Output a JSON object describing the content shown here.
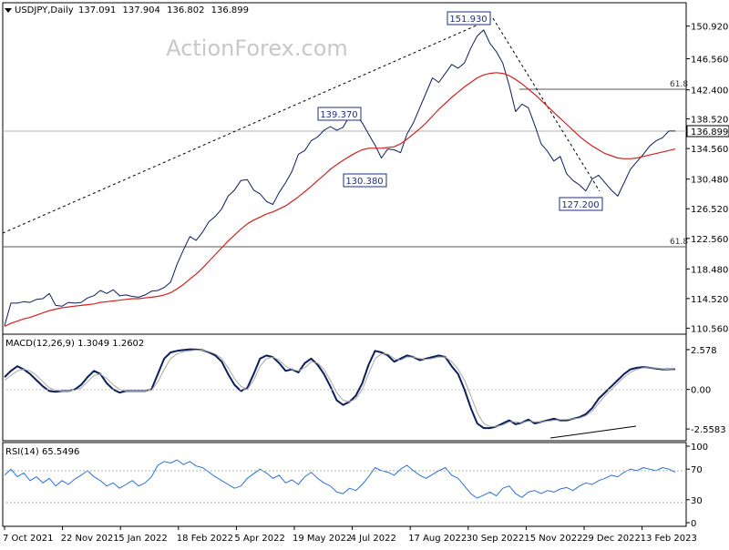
{
  "chart_data": [
    {
      "type": "line",
      "panel": "price",
      "symbol_header": "USDJPY,Daily",
      "ohlc": {
        "open": "137.091",
        "high": "137.904",
        "low": "136.802",
        "close": "136.899"
      },
      "watermark": "ActionForex.com",
      "x_ticks": [
        "7 Oct 2021",
        "22 Nov 2021",
        "5 Jan 2022",
        "18 Feb 2022",
        "5 Apr 2022",
        "19 May 2022",
        "4 Jul 2022",
        "17 Aug 2022",
        "30 Sep 2022",
        "15 Nov 2022",
        "29 Dec 2022",
        "13 Feb 2023"
      ],
      "y_ticks": [
        "150.920",
        "146.560",
        "142.400",
        "138.520",
        "134.560",
        "130.480",
        "126.520",
        "122.560",
        "118.480",
        "114.520",
        "110.560"
      ],
      "ylim": [
        110.0,
        153.8
      ],
      "current_price_label": "136.899",
      "series": [
        {
          "name": "Close",
          "color": "#0b1f5c",
          "values": [
            110.9,
            113.9,
            113.9,
            114.1,
            114.0,
            114.4,
            114.5,
            115.2,
            113.6,
            113.5,
            114.0,
            113.9,
            114.0,
            114.6,
            114.9,
            115.6,
            115.2,
            115.7,
            114.9,
            115.0,
            114.8,
            114.7,
            115.0,
            115.5,
            115.6,
            116.0,
            116.7,
            119.1,
            121.0,
            122.8,
            122.3,
            123.4,
            124.8,
            125.5,
            126.5,
            128.2,
            129.0,
            130.3,
            130.4,
            129.0,
            128.5,
            127.5,
            127.1,
            128.7,
            130.0,
            131.5,
            133.8,
            134.3,
            135.6,
            136.1,
            137.0,
            137.5,
            137.0,
            137.4,
            138.9,
            139.1,
            138.0,
            136.5,
            135.0,
            133.3,
            134.5,
            134.4,
            134.0,
            136.5,
            138.0,
            140.0,
            142.0,
            144.0,
            143.4,
            144.6,
            145.8,
            145.3,
            146.0,
            148.0,
            149.6,
            150.4,
            148.6,
            147.5,
            146.0,
            143.0,
            139.5,
            140.5,
            140.0,
            137.7,
            135.2,
            134.2,
            132.9,
            133.5,
            131.2,
            130.3,
            129.7,
            128.9,
            130.5,
            131.0,
            130.0,
            129.0,
            128.2,
            130.0,
            131.8,
            132.8,
            133.8,
            134.9,
            135.6,
            136.0,
            136.9,
            136.9
          ]
        },
        {
          "name": "MA",
          "color": "#d42020",
          "values": [
            110.8,
            111.2,
            111.5,
            111.8,
            112.0,
            112.3,
            112.6,
            112.9,
            113.1,
            113.3,
            113.4,
            113.5,
            113.6,
            113.7,
            113.8,
            114.0,
            114.1,
            114.2,
            114.3,
            114.4,
            114.5,
            114.5,
            114.6,
            114.7,
            114.8,
            115.0,
            115.3,
            115.8,
            116.4,
            117.1,
            117.8,
            118.6,
            119.5,
            120.4,
            121.3,
            122.2,
            123.0,
            123.8,
            124.5,
            125.0,
            125.4,
            125.8,
            126.1,
            126.5,
            126.9,
            127.5,
            128.1,
            128.8,
            129.5,
            130.3,
            131.0,
            131.8,
            132.4,
            133.0,
            133.5,
            134.0,
            134.4,
            134.6,
            134.6,
            134.6,
            134.7,
            134.8,
            135.2,
            135.8,
            136.5,
            137.2,
            138.0,
            138.9,
            139.8,
            140.6,
            141.4,
            142.1,
            142.8,
            143.4,
            144.0,
            144.4,
            144.6,
            144.7,
            144.6,
            144.3,
            143.8,
            143.2,
            142.5,
            141.8,
            141.0,
            140.2,
            139.4,
            138.6,
            137.8,
            137.0,
            136.2,
            135.5,
            134.9,
            134.4,
            133.9,
            133.6,
            133.3,
            133.2,
            133.2,
            133.3,
            133.5,
            133.7,
            133.9,
            134.1,
            134.3,
            134.5
          ]
        }
      ],
      "annotations": [
        "151.930",
        "139.370",
        "130.380",
        "127.200",
        "61.8",
        "61.8"
      ]
    },
    {
      "type": "line",
      "panel": "macd",
      "header": "MACD(12,26,9) 1.3049 1.2602",
      "y_ticks": [
        "2.578",
        "0.00",
        "-2.5583"
      ],
      "ylim": [
        -3.2,
        3.4
      ],
      "series": [
        {
          "name": "MACD",
          "color": "#0b1f5c",
          "values": [
            0.8,
            1.2,
            1.5,
            1.3,
            1.0,
            0.6,
            0.2,
            -0.1,
            -0.15,
            -0.1,
            -0.1,
            0.0,
            0.3,
            0.8,
            1.2,
            1.0,
            0.4,
            0.0,
            -0.2,
            -0.1,
            -0.1,
            -0.1,
            -0.1,
            0.0,
            1.0,
            2.0,
            2.4,
            2.5,
            2.55,
            2.6,
            2.58,
            2.55,
            2.4,
            2.2,
            1.8,
            1.0,
            0.3,
            -0.1,
            0.1,
            1.0,
            2.0,
            2.2,
            2.1,
            1.7,
            1.2,
            1.3,
            1.1,
            1.7,
            2.0,
            1.6,
            1.0,
            0.2,
            -0.7,
            -1.0,
            -0.8,
            -0.4,
            0.4,
            1.6,
            2.5,
            2.4,
            2.2,
            1.8,
            2.0,
            2.2,
            2.1,
            1.9,
            2.0,
            2.1,
            2.2,
            2.1,
            1.5,
            1.0,
            0.0,
            -1.2,
            -2.2,
            -2.5,
            -2.5,
            -2.4,
            -2.2,
            -2.0,
            -2.25,
            -2.15,
            -1.95,
            -2.2,
            -2.1,
            -2.0,
            -1.9,
            -2.0,
            -2.0,
            -1.9,
            -1.8,
            -1.6,
            -1.2,
            -0.6,
            -0.2,
            0.2,
            0.6,
            1.0,
            1.3,
            1.4,
            1.45,
            1.4,
            1.35,
            1.3,
            1.3,
            1.3
          ]
        },
        {
          "name": "Signal",
          "color": "#a8a8a8",
          "values": [
            0.6,
            0.9,
            1.2,
            1.3,
            1.2,
            0.9,
            0.5,
            0.1,
            -0.05,
            -0.1,
            -0.1,
            -0.05,
            0.1,
            0.5,
            0.9,
            1.0,
            0.7,
            0.3,
            0.0,
            -0.1,
            -0.1,
            -0.1,
            -0.1,
            -0.05,
            0.5,
            1.3,
            2.0,
            2.3,
            2.45,
            2.5,
            2.55,
            2.55,
            2.45,
            2.3,
            2.0,
            1.4,
            0.7,
            0.2,
            0.0,
            0.6,
            1.5,
            2.0,
            2.1,
            1.9,
            1.5,
            1.3,
            1.2,
            1.4,
            1.8,
            1.7,
            1.3,
            0.6,
            -0.2,
            -0.7,
            -0.8,
            -0.6,
            0.0,
            1.0,
            2.0,
            2.3,
            2.3,
            2.0,
            1.9,
            2.1,
            2.1,
            2.0,
            1.95,
            2.0,
            2.1,
            2.1,
            1.8,
            1.3,
            0.6,
            -0.4,
            -1.5,
            -2.2,
            -2.4,
            -2.4,
            -2.3,
            -2.1,
            -2.1,
            -2.15,
            -2.05,
            -2.1,
            -2.1,
            -2.05,
            -2.0,
            -1.95,
            -1.95,
            -1.9,
            -1.85,
            -1.7,
            -1.4,
            -0.9,
            -0.4,
            0.0,
            0.4,
            0.8,
            1.1,
            1.3,
            1.4,
            1.4,
            1.38,
            1.33,
            1.3,
            1.26
          ]
        }
      ]
    },
    {
      "type": "line",
      "panel": "rsi",
      "header": "RSI(14) 65.5496",
      "y_ticks": [
        "100",
        "70",
        "30",
        "0"
      ],
      "ylim": [
        0,
        100
      ],
      "series": [
        {
          "name": "RSI",
          "color": "#2a6fd6",
          "values": [
            62,
            70,
            60,
            65,
            55,
            60,
            52,
            58,
            48,
            55,
            50,
            57,
            62,
            68,
            60,
            55,
            48,
            52,
            45,
            50,
            55,
            48,
            52,
            60,
            75,
            80,
            78,
            82,
            76,
            80,
            74,
            72,
            66,
            60,
            55,
            50,
            45,
            48,
            58,
            64,
            70,
            65,
            58,
            62,
            52,
            56,
            50,
            60,
            66,
            58,
            52,
            48,
            40,
            38,
            45,
            42,
            50,
            60,
            72,
            68,
            66,
            62,
            70,
            75,
            68,
            62,
            58,
            63,
            68,
            72,
            62,
            58,
            48,
            38,
            32,
            36,
            40,
            35,
            45,
            48,
            38,
            33,
            40,
            42,
            38,
            42,
            40,
            44,
            46,
            42,
            48,
            52,
            50,
            55,
            58,
            62,
            60,
            66,
            70,
            68,
            72,
            70,
            68,
            72,
            70,
            66
          ]
        }
      ]
    }
  ]
}
